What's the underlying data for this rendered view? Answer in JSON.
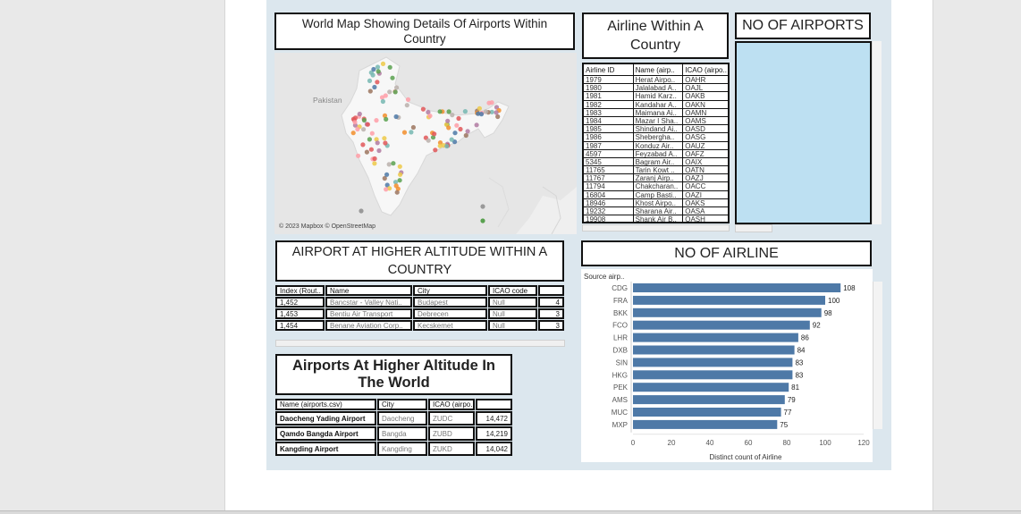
{
  "map": {
    "title": "World Map Showing Details Of Airports Within Country",
    "region_label": "Pakistan",
    "attribution": "© 2023 Mapbox © OpenStreetMap"
  },
  "airline_table": {
    "title": "Airline Within A Country",
    "headers": [
      "Airline ID",
      "Name (airp..",
      "ICAO (airpo.."
    ],
    "rows": [
      [
        "1979",
        "Herat Airpo..",
        "OAHR"
      ],
      [
        "1980",
        "Jalalabad A..",
        "OAJL"
      ],
      [
        "1981",
        "Hamid Karz..",
        "OAKB"
      ],
      [
        "1982",
        "Kandahar A..",
        "OAKN"
      ],
      [
        "1983",
        "Maimana Ai..",
        "OAMN"
      ],
      [
        "1984",
        "Mazar I Sha..",
        "OAMS"
      ],
      [
        "1985",
        "Shindand Ai..",
        "OASD"
      ],
      [
        "1986",
        "Sheberghа..",
        "OASG"
      ],
      [
        "1987",
        "Konduz Air..",
        "OAUZ"
      ],
      [
        "4597",
        "Feyzabad A..",
        "OAFZ"
      ],
      [
        "5345",
        "Bagram Air..",
        "OAIX"
      ],
      [
        "11765",
        "Tarin Kowt ..",
        "OATN"
      ],
      [
        "11767",
        "Zaranj Airp..",
        "OAZJ"
      ],
      [
        "11794",
        "Chakcharan..",
        "OACC"
      ],
      [
        "16804",
        "Camp Basti..",
        "OAZI"
      ],
      [
        "18946",
        "Khost Airpo..",
        "OAKS"
      ],
      [
        "19232",
        "Sharana Air..",
        "OASA"
      ],
      [
        "19908",
        "Shank Air B..",
        "OASH"
      ]
    ]
  },
  "no_of_airports": {
    "title": "NO OF AIRPORTS",
    "fill_color": "#bde0f2"
  },
  "altitude_country": {
    "title": "AIRPORT AT HIGHER ALTITUDE WITHIN A COUNTRY",
    "headers": [
      "Index (Rout..",
      "Name",
      "City",
      "ICAO code",
      ""
    ],
    "rows": [
      [
        "1,452",
        "Bancstar - Valley Nati..",
        "Budapest",
        "Null",
        "4"
      ],
      [
        "1,453",
        "Bentiu Air Transport",
        "Debrecen",
        "Null",
        "3"
      ],
      [
        "1,454",
        "Benane Aviation Corp..",
        "Kecskemet",
        "Null",
        "3"
      ]
    ]
  },
  "altitude_world": {
    "title": "Airports At Higher Altitude In The World",
    "headers": [
      "Name (airports.csv)",
      "City",
      "ICAO (airpo..",
      ""
    ],
    "rows": [
      [
        "Daocheng Yading Airport",
        "Daocheng",
        "ZUDC",
        "14,472"
      ],
      [
        "Qamdo Bangda Airport",
        "Bangda",
        "ZUBD",
        "14,219"
      ],
      [
        "Kangding Airport",
        "Kangding",
        "ZUKD",
        "14,042"
      ]
    ]
  },
  "no_of_airline": {
    "title": "NO OF AIRLINE",
    "column_header": "Source airp..",
    "bar_color": "#4e79a7",
    "chart_data": {
      "type": "bar",
      "orientation": "horizontal",
      "categories": [
        "CDG",
        "FRA",
        "BKK",
        "FCO",
        "LHR",
        "DXB",
        "SIN",
        "HKG",
        "PEK",
        "AMS",
        "MUC",
        "MXP"
      ],
      "values": [
        108,
        100,
        98,
        92,
        86,
        84,
        83,
        83,
        81,
        79,
        77,
        75
      ],
      "xlabel": "Distinct count of Airline",
      "ylabel": "Source airp..",
      "xlim": [
        0,
        120
      ],
      "xticks": [
        "0",
        "20",
        "40",
        "60",
        "80",
        "100",
        "120"
      ],
      "grid": false
    }
  }
}
